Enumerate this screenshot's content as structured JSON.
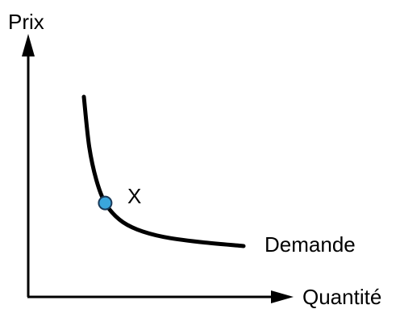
{
  "chart_data": {
    "type": "line",
    "title": "",
    "xlabel": "Quantité",
    "ylabel": "Prix",
    "grid": false,
    "ticks": false,
    "series": [
      {
        "name": "Demande",
        "points": [
          [
            1.0,
            10.0
          ],
          [
            1.3,
            7.0
          ],
          [
            1.7,
            5.0
          ],
          [
            2.2,
            3.6
          ],
          [
            3.0,
            2.6
          ],
          [
            4.0,
            2.0
          ],
          [
            5.5,
            1.55
          ],
          [
            7.5,
            1.25
          ],
          [
            10.0,
            1.0
          ]
        ]
      }
    ],
    "annotations": [
      {
        "label": "X",
        "point": [
          2.2,
          3.6
        ]
      }
    ],
    "colors": {
      "curve": "#000000",
      "axes": "#000000",
      "marker_fill": "#3aa6dd",
      "marker_stroke": "#1a3a5a"
    }
  }
}
